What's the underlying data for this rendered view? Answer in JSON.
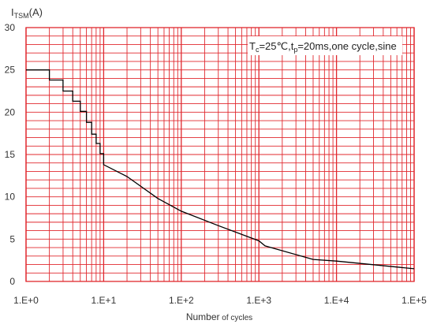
{
  "chart_data": {
    "type": "line",
    "x_scale": "log",
    "xlim": [
      1,
      100000
    ],
    "ylim": [
      0,
      30
    ],
    "y_ticks": [
      0,
      5,
      10,
      15,
      20,
      25,
      30
    ],
    "x_ticks": [
      1,
      10,
      100,
      1000,
      10000,
      100000
    ],
    "x_tick_labels": [
      "1.E+0",
      "1.E+1",
      "1.E+2",
      "1.E+3",
      "1.E+4",
      "1.E+5"
    ],
    "grid": true,
    "colors": {
      "grid": "#e0282e",
      "curve": "#000000",
      "frame": "#e0282e"
    },
    "ylabel": {
      "main": "I",
      "sub": "TSM",
      "unit": "(A)"
    },
    "xlabel": {
      "main": "Number",
      "suffix": " of cycles"
    },
    "annotation": {
      "parts": [
        "T",
        "c",
        "=25℃,t",
        "p",
        "=20ms,one cycle,sine"
      ]
    },
    "series": [
      {
        "x": [
          1,
          2,
          2,
          3,
          3,
          4,
          4,
          5,
          5,
          6,
          6,
          7,
          7,
          8,
          8,
          9,
          9,
          10,
          10,
          20,
          50,
          100,
          300,
          1000,
          1200,
          5000,
          10000,
          100000
        ],
        "y": [
          25,
          25,
          23.8,
          23.8,
          22.5,
          22.5,
          21.3,
          21.3,
          20.1,
          20.1,
          18.8,
          18.8,
          17.4,
          17.4,
          16.3,
          16.3,
          15.1,
          15.1,
          13.8,
          12.4,
          9.8,
          8.3,
          6.6,
          4.8,
          4.2,
          2.6,
          2.4,
          1.5
        ]
      }
    ]
  }
}
